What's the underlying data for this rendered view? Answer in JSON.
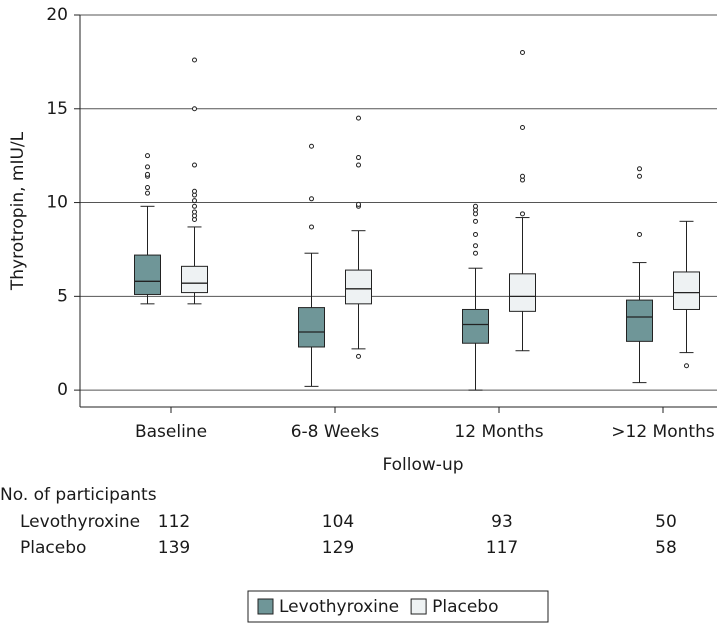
{
  "chart_data": {
    "type": "box",
    "y_label": "Thyrotropin, mIU/L",
    "x_label": "Follow-up",
    "categories": [
      "Baseline",
      "6-8 Weeks",
      "12 Months",
      ">12 Months"
    ],
    "ylim": [
      -0.9,
      20
    ],
    "yticks": [
      0,
      5,
      10,
      15,
      20
    ],
    "grid": true,
    "series": [
      {
        "name": "Levothyroxine",
        "color": "#6f9698",
        "values": [
          {
            "whislo": 4.6,
            "q1": 5.1,
            "med": 5.8,
            "q3": 7.2,
            "whishi": 9.8,
            "fliers": [
              10.5,
              10.8,
              11.4,
              11.5,
              11.9,
              12.5
            ]
          },
          {
            "whislo": 0.2,
            "q1": 2.3,
            "med": 3.1,
            "q3": 4.4,
            "whishi": 7.3,
            "fliers": [
              8.7,
              10.2,
              13.0
            ]
          },
          {
            "whislo": 0.0,
            "q1": 2.5,
            "med": 3.5,
            "q3": 4.3,
            "whishi": 6.5,
            "fliers": [
              7.3,
              7.7,
              8.3,
              9.0,
              9.4,
              9.6,
              9.8
            ]
          },
          {
            "whislo": 0.4,
            "q1": 2.6,
            "med": 3.9,
            "q3": 4.8,
            "whishi": 6.8,
            "fliers": [
              8.3,
              11.4,
              11.8
            ]
          }
        ]
      },
      {
        "name": "Placebo",
        "color": "#eef2f3",
        "values": [
          {
            "whislo": 4.6,
            "q1": 5.2,
            "med": 5.7,
            "q3": 6.6,
            "whishi": 8.7,
            "fliers": [
              9.1,
              9.3,
              9.5,
              9.8,
              10.1,
              10.4,
              10.6,
              12.0,
              15.0,
              17.6
            ]
          },
          {
            "whislo": 2.2,
            "q1": 4.6,
            "med": 5.4,
            "q3": 6.4,
            "whishi": 8.5,
            "fliers": [
              1.8,
              9.8,
              9.9,
              12.0,
              12.4,
              14.5
            ]
          },
          {
            "whislo": 2.1,
            "q1": 4.2,
            "med": 5.0,
            "q3": 6.2,
            "whishi": 9.2,
            "fliers": [
              9.4,
              11.2,
              11.4,
              14.0,
              18.0
            ]
          },
          {
            "whislo": 2.0,
            "q1": 4.3,
            "med": 5.2,
            "q3": 6.3,
            "whishi": 9.0,
            "fliers": [
              1.3
            ]
          }
        ]
      }
    ],
    "participants": {
      "title": "No. of participants",
      "rows": [
        {
          "name": "Levothyroxine",
          "values": [
            112,
            104,
            93,
            50
          ]
        },
        {
          "name": "Placebo",
          "values": [
            139,
            129,
            117,
            58
          ]
        }
      ]
    }
  }
}
